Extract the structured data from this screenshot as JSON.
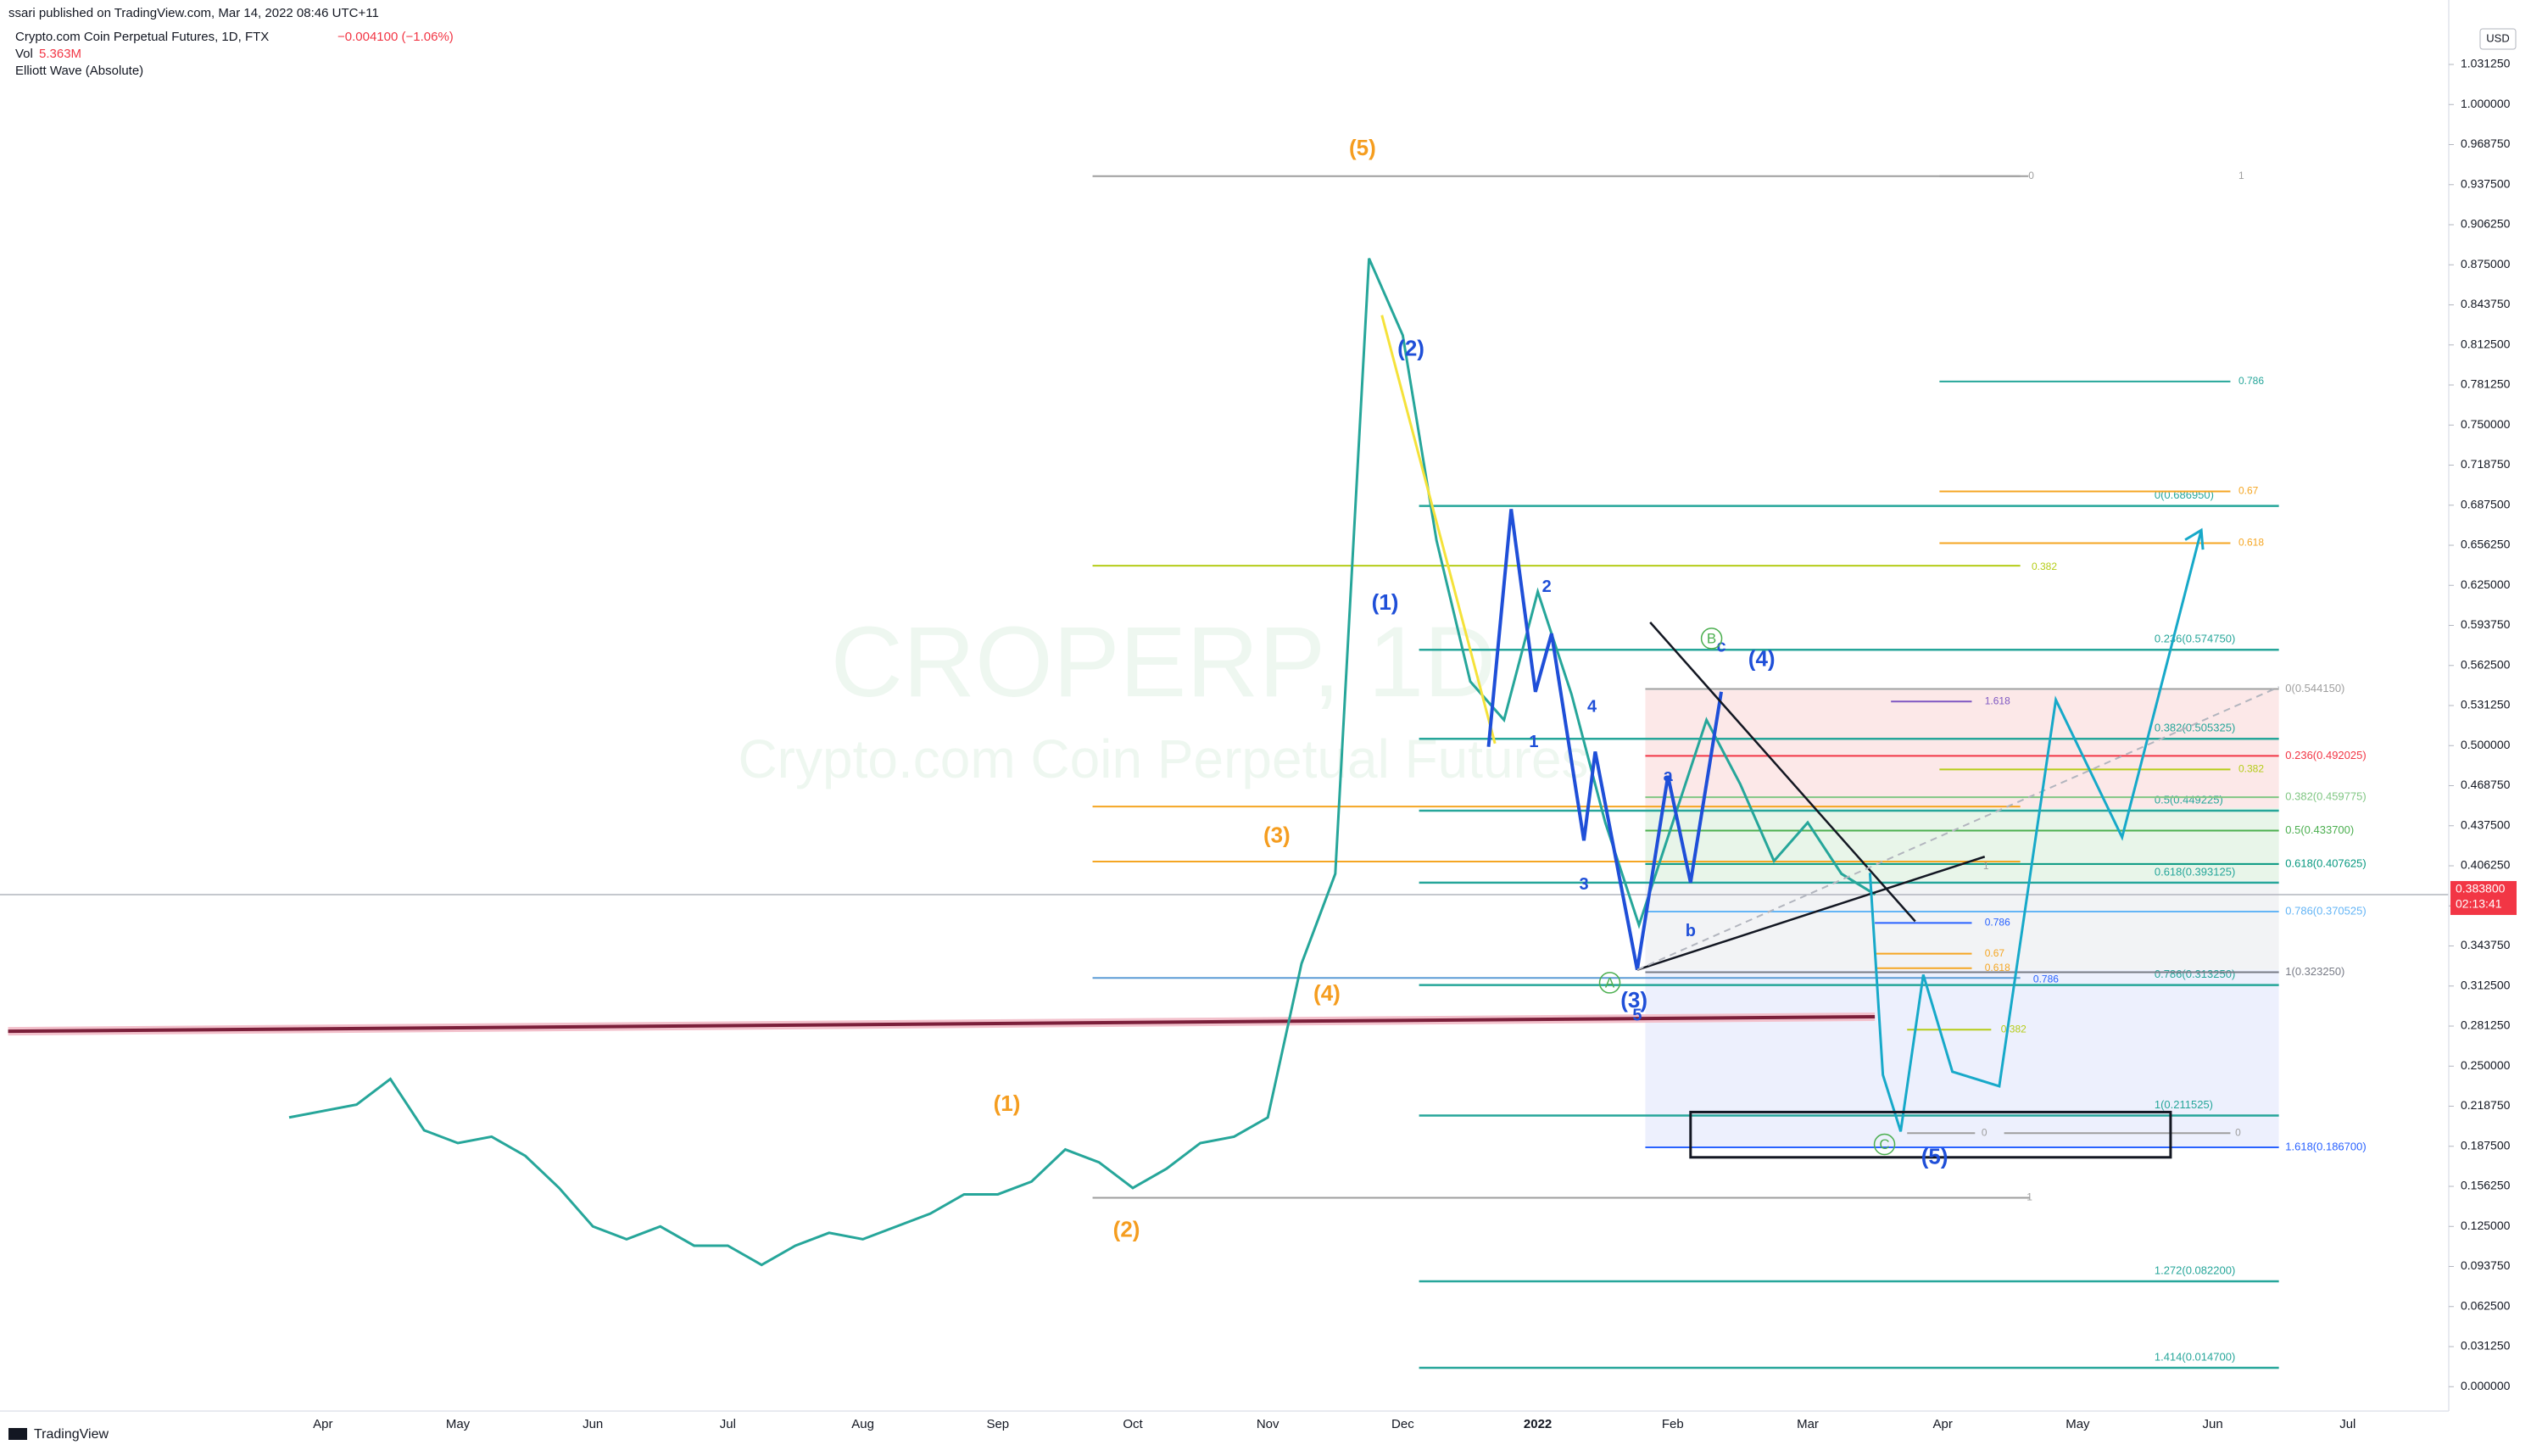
{
  "header": {
    "publisher": "ssari published on TradingView.com, Mar 14, 2022 08:46 UTC+11",
    "symbol": "Crypto.com Coin Perpetual Futures, 1D, FTX",
    "change": "−0.004100 (−1.06%)",
    "vol_label": "Vol",
    "vol_value": "5.363M",
    "indicator": "Elliott Wave (Absolute)"
  },
  "watermark": {
    "symbol": "CROPERP, 1D",
    "name": "Crypto.com Coin Perpetual Futures"
  },
  "footer": {
    "brand": "TradingView"
  },
  "chart_data": {
    "type": "line",
    "color": "#26a69a",
    "currency": "USD",
    "last_price_label": "0.383800",
    "countdown": "02:13:41",
    "categories": [
      null,
      "Apr",
      null,
      null,
      null,
      "May",
      null,
      null,
      null,
      "Jun",
      null,
      null,
      null,
      "Jul",
      null,
      null,
      null,
      "Aug",
      null,
      null,
      null,
      "Sep",
      null,
      null,
      null,
      "Oct",
      null,
      null,
      null,
      "Nov",
      null,
      null,
      null,
      "Dec",
      null,
      null,
      null,
      "2022",
      null,
      null,
      null,
      "Feb",
      null,
      null,
      null,
      "Mar",
      null,
      null,
      null,
      "Apr",
      null,
      null,
      null,
      "May",
      null,
      null,
      null,
      "Jun",
      null,
      null,
      null,
      "Jul",
      null,
      null
    ],
    "values": [
      0.21,
      0.215,
      0.22,
      0.24,
      0.2,
      0.19,
      0.195,
      0.18,
      0.155,
      0.125,
      0.115,
      0.125,
      0.11,
      0.11,
      0.095,
      0.11,
      0.12,
      0.115,
      0.125,
      0.135,
      0.15,
      0.15,
      0.16,
      0.185,
      0.175,
      0.155,
      0.17,
      0.19,
      0.195,
      0.21,
      0.33,
      0.4,
      0.88,
      0.82,
      0.66,
      0.55,
      0.52,
      0.62,
      0.54,
      0.44,
      0.36,
      0.44,
      0.52,
      0.47,
      0.41,
      0.44,
      0.4,
      0.3838,
      null,
      null,
      null,
      null,
      null,
      null,
      null,
      null,
      null,
      null,
      null,
      null,
      null,
      null,
      null,
      null
    ],
    "ylim": [
      -0.0071,
      1.0802
    ],
    "yticks": [
      {
        "value": 0,
        "label": "0.000000"
      },
      {
        "value": 0.03125,
        "label": "0.031250"
      },
      {
        "value": 0.0625,
        "label": "0.062500"
      },
      {
        "value": 0.09375,
        "label": "0.093750"
      },
      {
        "value": 0.125,
        "label": "0.125000"
      },
      {
        "value": 0.15625,
        "label": "0.156250"
      },
      {
        "value": 0.1875,
        "label": "0.187500"
      },
      {
        "value": 0.21875,
        "label": "0.218750"
      },
      {
        "value": 0.25,
        "label": "0.250000"
      },
      {
        "value": 0.28125,
        "label": "0.281250"
      },
      {
        "value": 0.3125,
        "label": "0.312500"
      },
      {
        "value": 0.34375,
        "label": "0.343750"
      },
      {
        "value": 0.375,
        "label": "0.375000"
      },
      {
        "value": 0.40625,
        "label": "0.406250"
      },
      {
        "value": 0.4375,
        "label": "0.437500"
      },
      {
        "value": 0.46875,
        "label": "0.468750"
      },
      {
        "value": 0.5,
        "label": "0.500000"
      },
      {
        "value": 0.53125,
        "label": "0.531250"
      },
      {
        "value": 0.5625,
        "label": "0.562500"
      },
      {
        "value": 0.59375,
        "label": "0.593750"
      },
      {
        "value": 0.625,
        "label": "0.625000"
      },
      {
        "value": 0.65625,
        "label": "0.656250"
      },
      {
        "value": 0.6875,
        "label": "0.687500"
      },
      {
        "value": 0.71875,
        "label": "0.718750"
      },
      {
        "value": 0.75,
        "label": "0.750000"
      },
      {
        "value": 0.78125,
        "label": "0.781250"
      },
      {
        "value": 0.8125,
        "label": "0.812500"
      },
      {
        "value": 0.84375,
        "label": "0.843750"
      },
      {
        "value": 0.875,
        "label": "0.875000"
      },
      {
        "value": 0.90625,
        "label": "0.906250"
      },
      {
        "value": 0.9375,
        "label": "0.937500"
      },
      {
        "value": 0.96875,
        "label": "0.968750"
      },
      {
        "value": 1,
        "label": "1.000000"
      },
      {
        "value": 1.03125,
        "label": "1.031250"
      }
    ],
    "grid": false,
    "waves": {
      "primary": {
        "color": "#f59d1f",
        "labels": [
          "(1)",
          "(2)",
          "(3)",
          "(4)",
          "(5)"
        ]
      },
      "intermediate": {
        "color": "#1f4fd8",
        "labels": [
          "(1)",
          "(2)",
          "(3)",
          "(4)",
          "(5)"
        ]
      },
      "minor": {
        "color": "#1f4fd8",
        "labels": [
          "1",
          "2",
          "3",
          "4",
          "5",
          "a",
          "b",
          "c"
        ]
      },
      "correction": {
        "color": "#4caf50",
        "labels": [
          "A",
          "B",
          "C"
        ]
      }
    },
    "fib_retracement": {
      "color": "#26a69a",
      "levels": [
        {
          "label": "0(0.686950)",
          "price": 0.68695
        },
        {
          "label": "0.236(0.574750)",
          "price": 0.57475
        },
        {
          "label": "0.382(0.505325)",
          "price": 0.505325
        },
        {
          "label": "0.5(0.449225)",
          "price": 0.449225
        },
        {
          "label": "0.618(0.393125)",
          "price": 0.393125
        },
        {
          "label": "0.786(0.313250)",
          "price": 0.31325
        },
        {
          "label": "1(0.211525)",
          "price": 0.211525
        },
        {
          "label": "1.272(0.082200)",
          "price": 0.0822
        },
        {
          "label": "1.414(0.014700)",
          "price": 0.0147
        }
      ]
    },
    "fib_target": {
      "levels": [
        {
          "label": "0(0.544150)",
          "price": 0.54415,
          "color": "#9e9e9e"
        },
        {
          "label": "0.236(0.492025)",
          "price": 0.492025,
          "color": "#f23645"
        },
        {
          "label": "0.382(0.459775)",
          "price": 0.459775,
          "color": "#81c784"
        },
        {
          "label": "0.5(0.433700)",
          "price": 0.4337,
          "color": "#4caf50"
        },
        {
          "label": "0.618(0.407625)",
          "price": 0.407625,
          "color": "#089981"
        },
        {
          "label": "0.786(0.370525)",
          "price": 0.370525,
          "color": "#64b5f6"
        },
        {
          "label": "1(0.323250)",
          "price": 0.32325,
          "color": "#787b86"
        },
        {
          "label": "1.618(0.186700)",
          "price": 0.1867,
          "color": "#2962ff"
        }
      ]
    },
    "ratio_marks": [
      "0",
      "1",
      "0.786",
      "0.67",
      "0.618",
      "0.382",
      "1.618",
      "0.382",
      "0.786",
      "0.67",
      "0.618",
      "0.786",
      "0.382",
      "0",
      "0",
      "1",
      "1"
    ]
  }
}
